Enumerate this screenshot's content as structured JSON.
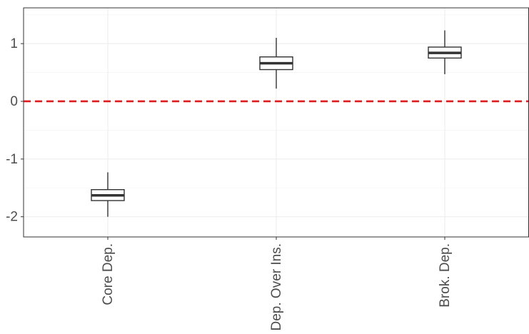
{
  "chart_data": {
    "type": "boxplot",
    "title": "",
    "xlabel": "",
    "ylabel": "",
    "categories": [
      "Core Dep.",
      "Dep. Over Ins.",
      "Brok. Dep."
    ],
    "boxes": [
      {
        "category": "Core Dep.",
        "whisker_low": -2.0,
        "q1": -1.72,
        "median": -1.63,
        "q3": -1.53,
        "whisker_high": -1.23
      },
      {
        "category": "Dep. Over Ins.",
        "whisker_low": 0.22,
        "q1": 0.55,
        "median": 0.66,
        "q3": 0.77,
        "whisker_high": 1.1
      },
      {
        "category": "Brok. Dep.",
        "whisker_low": 0.47,
        "q1": 0.75,
        "median": 0.84,
        "q3": 0.94,
        "whisker_high": 1.23
      }
    ],
    "reference_line": {
      "y": 0,
      "style": "dashed",
      "color": "#e31a1c"
    },
    "ylim": [
      -2.35,
      1.62
    ],
    "y_ticks": [
      1,
      0,
      -1,
      -2
    ],
    "y_tick_labels": [
      "1",
      "0",
      "-1",
      "-2"
    ],
    "grid": true,
    "colors": {
      "box_stroke": "#333333",
      "box_fill": "#ffffff",
      "grid_major": "#ebebeb",
      "grid_minor": "#f5f5f5",
      "panel_border": "#333333"
    }
  }
}
